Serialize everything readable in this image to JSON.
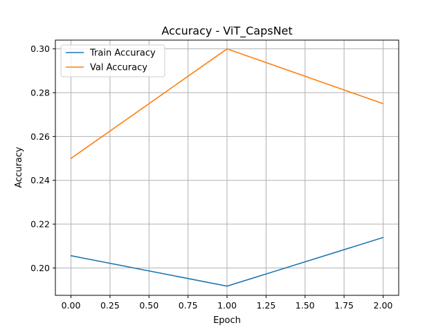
{
  "chart_data": {
    "type": "line",
    "title": "Accuracy - ViT_CapsNet",
    "xlabel": "Epoch",
    "ylabel": "Accuracy",
    "xlim": [
      -0.1,
      2.1
    ],
    "ylim": [
      0.1875,
      0.304
    ],
    "xticks": [
      0.0,
      0.25,
      0.5,
      0.75,
      1.0,
      1.25,
      1.5,
      1.75,
      2.0
    ],
    "xtick_labels": [
      "0.00",
      "0.25",
      "0.50",
      "0.75",
      "1.00",
      "1.25",
      "1.50",
      "1.75",
      "2.00"
    ],
    "yticks": [
      0.2,
      0.22,
      0.24,
      0.26,
      0.28,
      0.3
    ],
    "ytick_labels": [
      "0.20",
      "0.22",
      "0.24",
      "0.26",
      "0.28",
      "0.30"
    ],
    "grid": true,
    "legend_position": "top-left",
    "x": [
      0,
      1,
      2
    ],
    "series": [
      {
        "name": "Train Accuracy",
        "color": "#1f77b4",
        "values": [
          0.2056,
          0.1917,
          0.2139
        ]
      },
      {
        "name": "Val Accuracy",
        "color": "#ff7f0e",
        "values": [
          0.25,
          0.3,
          0.275
        ]
      }
    ]
  }
}
